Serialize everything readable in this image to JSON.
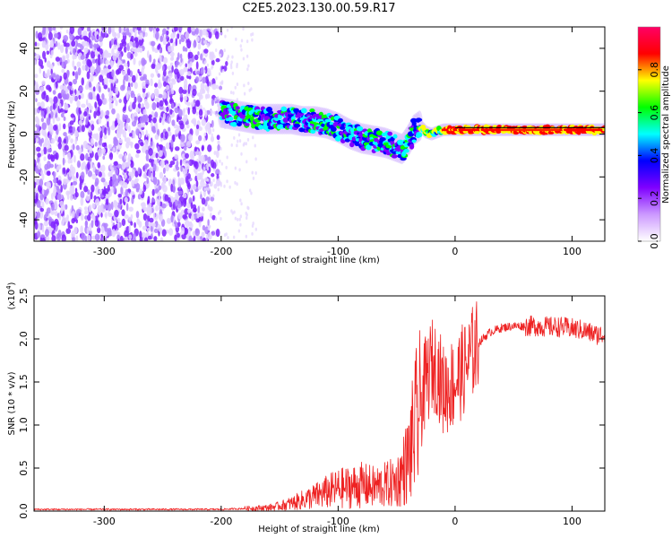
{
  "title": "C2E5.2023.130.00.59.R17",
  "chart_data": [
    {
      "type": "heatmap",
      "xlabel": "Height of straight line (km)",
      "ylabel": "Frequency (Hz)",
      "xlim": [
        -360,
        128
      ],
      "ylim": [
        -50,
        50
      ],
      "xticks": [
        -300,
        -200,
        -100,
        0,
        100
      ],
      "yticks": [
        -40,
        -20,
        0,
        20,
        40
      ],
      "grid": false,
      "colorbar": {
        "label": "Normalized spectral amplitude",
        "range": [
          0,
          1
        ],
        "ticks": [
          0.0,
          0.2,
          0.4,
          0.6,
          0.8
        ],
        "colors": [
          "#ffffff",
          "#cc99ff",
          "#7f00ff",
          "#0000ff",
          "#00ffff",
          "#00ff00",
          "#ffff00",
          "#ff0000",
          "#ff0066"
        ]
      },
      "trace": {
        "x": [
          -200,
          -190,
          -180,
          -170,
          -160,
          -150,
          -140,
          -130,
          -120,
          -110,
          -100,
          -90,
          -80,
          -70,
          -60,
          -50,
          -45,
          -40,
          -35,
          -30,
          -25,
          -20,
          -10,
          0,
          20,
          40,
          60,
          80,
          100,
          120
        ],
        "y": [
          10,
          9,
          8,
          7,
          7,
          7,
          7,
          6,
          6,
          5,
          3,
          0,
          -2,
          -3,
          -4,
          -6,
          -7,
          -3,
          2,
          4,
          1,
          0,
          2,
          2,
          2,
          2,
          2,
          2,
          2,
          2
        ]
      },
      "noise_region": [
        -360,
        -195
      ]
    },
    {
      "type": "line",
      "xlabel": "Height of straight line (km)",
      "ylabel": "SNR (10 * v/v)",
      "yscale_label": "(x10",
      "yscale_exp": "4",
      "ylabel_suffix": ")",
      "xlim": [
        -360,
        128
      ],
      "ylim": [
        0,
        2.5
      ],
      "xticks": [
        -300,
        -200,
        -100,
        0,
        100
      ],
      "yticks": [
        0.0,
        0.5,
        1.0,
        1.5,
        2.0,
        2.5
      ],
      "grid": false,
      "color": "#ee2222",
      "series": [
        {
          "x": [
            -360,
            -300,
            -250,
            -200,
            -180,
            -160,
            -150,
            -140,
            -130,
            -120,
            -110,
            -100,
            -90,
            -80,
            -70,
            -60,
            -50,
            -45,
            -40,
            -35,
            -30,
            -25,
            -20,
            -15,
            -10,
            -5,
            0,
            5,
            10,
            15,
            20,
            25,
            30,
            40,
            50,
            60,
            70,
            80,
            90,
            100,
            110,
            120,
            128
          ],
          "y": [
            0.02,
            0.02,
            0.02,
            0.02,
            0.03,
            0.04,
            0.06,
            0.09,
            0.13,
            0.17,
            0.22,
            0.26,
            0.28,
            0.3,
            0.28,
            0.3,
            0.34,
            0.45,
            0.6,
            0.9,
            1.2,
            1.5,
            1.7,
            1.65,
            1.4,
            1.45,
            1.5,
            1.6,
            1.7,
            1.85,
            1.95,
            2.02,
            2.08,
            2.13,
            2.15,
            2.15,
            2.15,
            2.14,
            2.14,
            2.12,
            2.1,
            2.05,
            2.05
          ]
        }
      ]
    }
  ]
}
